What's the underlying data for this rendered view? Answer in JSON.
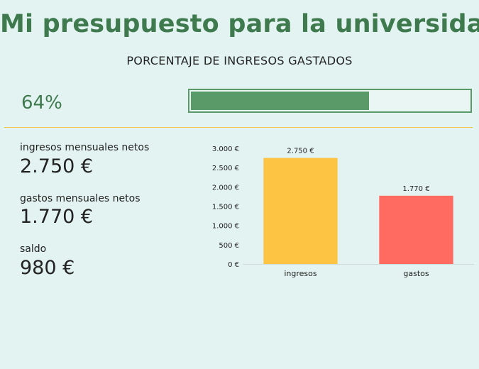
{
  "title": "Mi presupuesto para la universidad",
  "subtitle": "PORCENTAJE DE INGRESOS GASTADOS",
  "percent_spent": {
    "label": "64%",
    "value": 0.64,
    "fill_color": "#5a9a68"
  },
  "metrics": [
    {
      "label": "ingresos mensuales netos",
      "value": "2.750 €"
    },
    {
      "label": "gastos mensuales netos",
      "value": "1.770 €"
    },
    {
      "label": "saldo",
      "value": "980 €"
    }
  ],
  "chart_data": {
    "type": "bar",
    "categories": [
      "ingresos",
      "gastos"
    ],
    "values": [
      2750,
      1770
    ],
    "data_labels": [
      "2.750 €",
      "1.770 €"
    ],
    "colors": [
      "#fdc443",
      "#ff6b61"
    ],
    "ylim": [
      0,
      3000
    ],
    "yticks": [
      0,
      500,
      1000,
      1500,
      2000,
      2500,
      3000
    ],
    "ytick_labels": [
      "0 €",
      "500 €",
      "1.000 €",
      "1.500 €",
      "2.000 €",
      "2.500 €",
      "3.000 €"
    ],
    "grid": false,
    "title": "",
    "xlabel": "",
    "ylabel": ""
  }
}
